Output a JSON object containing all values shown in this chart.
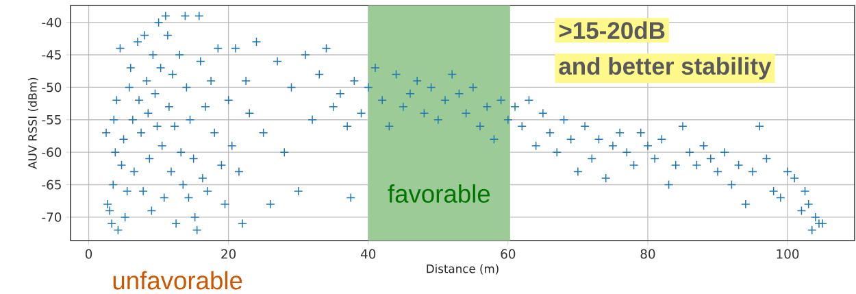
{
  "chart_data": {
    "type": "scatter",
    "xlabel": "Distance (m)",
    "ylabel": "AUV RSSI (dBm)",
    "xlim": [
      -2.6,
      109.6
    ],
    "ylim": [
      -73.6,
      -37.4
    ],
    "xticks": [
      0,
      20,
      40,
      60,
      80,
      100
    ],
    "yticks": [
      -70,
      -65,
      -60,
      -55,
      -50,
      -45,
      -40
    ],
    "grid": true,
    "marker": "cross",
    "bands": [
      {
        "axis": "x",
        "from": 40,
        "to": 60.3,
        "label": "favorable",
        "color": "#9ccb97"
      }
    ],
    "annotations": [
      "unfavorable",
      ">15-20dB",
      "and better stability"
    ],
    "series": [
      {
        "color": "#1f77b4",
        "x": [
          2.5,
          2.7,
          3,
          3.3,
          3.5,
          3.6,
          3.8,
          4,
          4.2,
          4.5,
          4.7,
          5,
          5.2,
          5.5,
          5.8,
          6,
          6.3,
          6.5,
          7,
          7.2,
          7.5,
          7.8,
          8,
          8.3,
          8.5,
          8.7,
          9,
          9.2,
          9.5,
          9.8,
          10,
          10.3,
          10.5,
          10.8,
          11,
          11.3,
          11.5,
          11.8,
          12,
          12.3,
          12.5,
          13,
          13.2,
          13.5,
          13.8,
          14,
          14.3,
          14.5,
          15,
          15.2,
          15.5,
          15.8,
          16,
          16.3,
          16.7,
          17,
          17.5,
          18,
          18.5,
          19,
          19.5,
          20,
          20.5,
          21,
          21.5,
          22,
          22.5,
          23,
          24,
          25,
          26,
          27,
          28,
          29,
          30,
          31,
          32,
          33,
          34,
          35,
          36,
          37,
          37.5,
          38,
          39,
          40,
          41,
          42,
          43,
          44,
          45,
          46,
          47,
          48,
          49,
          50,
          51,
          52,
          53,
          54,
          55,
          56,
          57,
          58,
          59,
          60,
          61,
          62,
          63,
          64,
          65,
          66,
          67,
          68,
          69,
          70,
          71,
          72,
          73,
          74,
          75,
          76,
          77,
          78,
          79,
          80,
          81,
          82,
          83,
          84,
          85,
          86,
          87,
          88,
          89,
          90,
          91,
          92,
          93,
          94,
          95,
          96,
          97,
          98,
          99,
          100,
          101,
          102,
          102.5,
          103,
          103.5,
          104,
          104.5,
          105
        ],
        "values": [
          -57,
          -68,
          -69,
          -71,
          -65,
          -55,
          -60,
          -52,
          -72,
          -44,
          -62,
          -58,
          -70,
          -66,
          -50,
          -47,
          -55,
          -63,
          -43,
          -52,
          -57,
          -66,
          -42,
          -49,
          -54,
          -61,
          -69,
          -45,
          -51,
          -56,
          -40,
          -47,
          -59,
          -67,
          -39,
          -42,
          -53,
          -63,
          -48,
          -56,
          -71,
          -45,
          -60,
          -65,
          -39,
          -50,
          -67,
          -55,
          -61,
          -70,
          -72,
          -39,
          -46,
          -64,
          -53,
          -66,
          -49,
          -57,
          -44,
          -62,
          -68,
          -52,
          -59,
          -44,
          -63,
          -71,
          -49,
          -54,
          -43,
          -57,
          -68,
          -46,
          -60,
          -50,
          -66,
          -45,
          -55,
          -48,
          -44,
          -53,
          -51,
          -56,
          -67,
          -49,
          -54,
          -50,
          -47,
          -52,
          -56,
          -48,
          -53,
          -51,
          -49,
          -54,
          -50,
          -55,
          -52,
          -48,
          -51,
          -54,
          -50,
          -56,
          -53,
          -58,
          -52,
          -55,
          -53,
          -56,
          -52,
          -59,
          -54,
          -57,
          -60,
          -55,
          -58,
          -63,
          -56,
          -61,
          -58,
          -64,
          -59,
          -57,
          -60,
          -62,
          -57,
          -59,
          -61,
          -58,
          -65,
          -62,
          -56,
          -60,
          -62,
          -59,
          -61,
          -63,
          -60,
          -65,
          -62,
          -68,
          -63,
          -56,
          -61,
          -66,
          -67,
          -63,
          -64,
          -69,
          -66,
          -68,
          -72,
          -70,
          -71,
          -71
        ]
      }
    ]
  }
}
